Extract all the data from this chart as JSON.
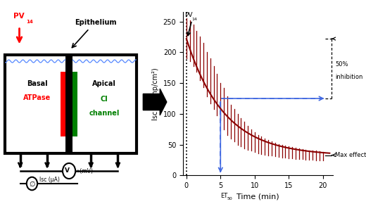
{
  "fig_width": 5.2,
  "fig_height": 2.9,
  "dpi": 100,
  "graph": {
    "xlim": [
      -0.5,
      21.5
    ],
    "ylim": [
      0,
      265
    ],
    "yticks": [
      0,
      50,
      100,
      150,
      200,
      250
    ],
    "xticks": [
      0,
      5,
      10,
      15,
      20
    ],
    "xlabel": "Time (min)",
    "ylabel": "Isc (μAmp/cm²)",
    "curve_color": "#8B0000",
    "time_points": [
      0,
      0.5,
      1,
      1.5,
      2,
      2.5,
      3,
      3.5,
      4,
      4.5,
      5,
      5.5,
      6,
      6.5,
      7,
      7.5,
      8,
      8.5,
      9,
      9.5,
      10,
      10.5,
      11,
      11.5,
      12,
      12.5,
      13,
      13.5,
      14,
      14.5,
      15,
      15.5,
      16,
      16.5,
      17,
      17.5,
      18,
      18.5,
      19,
      19.5,
      20
    ],
    "mean_values": [
      222,
      218,
      210,
      200,
      190,
      178,
      165,
      152,
      140,
      130,
      122,
      108,
      98,
      88,
      80,
      73,
      68,
      63,
      59,
      56,
      53,
      50,
      48,
      46,
      44,
      43,
      41,
      40,
      39,
      38,
      37,
      36,
      35,
      35,
      34,
      34,
      33,
      33,
      33,
      32,
      32
    ],
    "error_top": [
      255,
      252,
      245,
      235,
      225,
      215,
      200,
      190,
      177,
      165,
      150,
      142,
      128,
      115,
      108,
      100,
      93,
      87,
      80,
      75,
      70,
      66,
      63,
      60,
      57,
      55,
      53,
      51,
      50,
      49,
      47,
      46,
      45,
      44,
      43,
      42,
      41,
      40,
      40,
      39,
      38
    ],
    "error_bot": [
      190,
      185,
      178,
      168,
      155,
      143,
      128,
      117,
      108,
      97,
      90,
      75,
      65,
      60,
      55,
      50,
      47,
      44,
      42,
      40,
      38,
      36,
      35,
      34,
      33,
      32,
      31,
      30,
      29,
      29,
      28,
      28,
      27,
      27,
      27,
      26,
      26,
      26,
      25,
      25,
      25
    ],
    "inhibition_y": 125,
    "max_effect_y": 33,
    "dashed_line_color": "#4169E1",
    "vline_x": 0
  }
}
